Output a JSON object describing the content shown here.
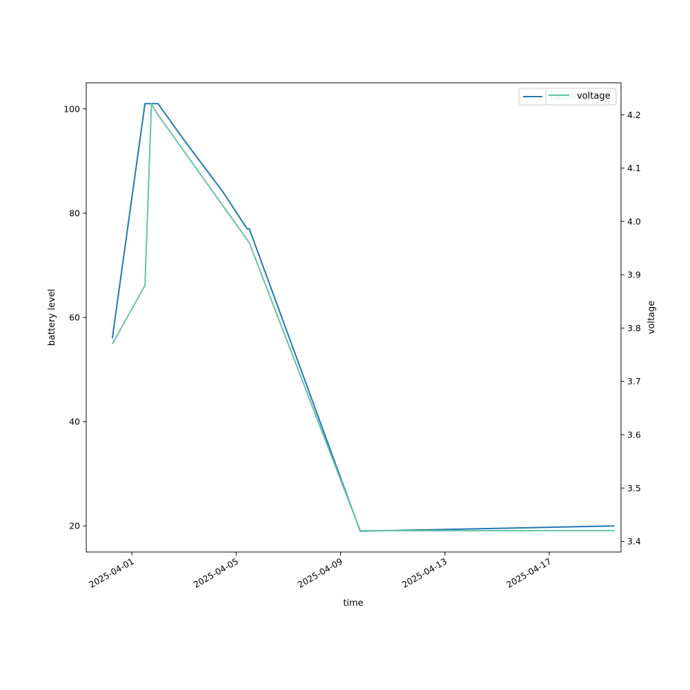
{
  "chart_data": {
    "type": "line",
    "title": "",
    "xlabel": "time",
    "ylabel": "battery level",
    "y2label": "voltage",
    "xlim": [
      "2025-03-30T06:00",
      "2025-04-19T18:00"
    ],
    "ylim": [
      15,
      105
    ],
    "y2lim": [
      3.38,
      4.26
    ],
    "x_ticks": [
      "2025-04-01",
      "2025-04-05",
      "2025-04-09",
      "2025-04-13",
      "2025-04-17"
    ],
    "y_ticks": [
      20,
      40,
      60,
      80,
      100
    ],
    "y2_ticks": [
      3.4,
      3.5,
      3.6,
      3.7,
      3.8,
      3.9,
      4.0,
      4.1,
      4.2
    ],
    "grid": false,
    "legend_placement": "top-right",
    "series": [
      {
        "name": "battery",
        "axis": "left",
        "color": "#1f77b4",
        "points": [
          {
            "x": "2025-03-31T06:00",
            "y": 56
          },
          {
            "x": "2025-04-01T12:00",
            "y": 101
          },
          {
            "x": "2025-04-01T18:00",
            "y": 101
          },
          {
            "x": "2025-04-02T00:00",
            "y": 101
          },
          {
            "x": "2025-04-03T00:00",
            "y": 94
          },
          {
            "x": "2025-04-04T12:00",
            "y": 84
          },
          {
            "x": "2025-04-05T10:00",
            "y": 77
          },
          {
            "x": "2025-04-05T12:00",
            "y": 77
          },
          {
            "x": "2025-04-09T18:00",
            "y": 19
          },
          {
            "x": "2025-04-19T12:00",
            "y": 20
          }
        ]
      },
      {
        "name": "voltage",
        "axis": "right",
        "color": "#66c2a5",
        "points": [
          {
            "x": "2025-03-31T06:00",
            "y": 3.77
          },
          {
            "x": "2025-04-01T12:00",
            "y": 3.88
          },
          {
            "x": "2025-04-01T18:00",
            "y": 4.22
          },
          {
            "x": "2025-04-02T00:00",
            "y": 4.2
          },
          {
            "x": "2025-04-05T12:00",
            "y": 3.96
          },
          {
            "x": "2025-04-09T18:00",
            "y": 3.42
          },
          {
            "x": "2025-04-19T12:00",
            "y": 3.42
          }
        ]
      }
    ]
  }
}
